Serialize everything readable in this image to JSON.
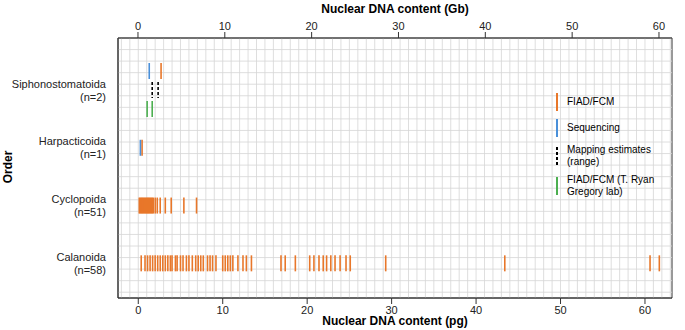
{
  "chart_data": {
    "type": "scatter",
    "x_label": "Nuclear DNA content (pg)",
    "x2_label": "Nuclear DNA content (Gb)",
    "y_label": "Order",
    "categories": [
      "Siphonostomatoida\n(n=2)",
      "Harpacticoida\n(n=1)",
      "Cyclopoida\n(n=51)",
      "Calanoida\n(n=58)"
    ],
    "xlim": [
      -2.4,
      63.2
    ],
    "xticks": [
      0,
      10,
      20,
      30,
      40,
      50,
      60
    ],
    "x2lim": [
      -2.3,
      61.5
    ],
    "x2ticks": [
      0,
      10,
      20,
      30,
      40,
      50,
      60
    ],
    "grid": true,
    "legend": "right",
    "series": [
      {
        "name": "FIAD/FCM",
        "color": "#e8772a",
        "line_style": "solid",
        "values": [
          [
            2.7
          ],
          [
            0.45
          ],
          [
            0.12,
            0.24,
            0.36,
            0.47,
            0.59,
            0.71,
            0.83,
            0.95,
            1.07,
            1.18,
            1.3,
            1.42,
            1.54,
            1.66,
            1.78,
            2.01,
            2.25,
            2.6,
            3.2,
            3.9,
            5.4,
            6.9
          ],
          [
            0.35,
            0.8,
            1.1,
            1.4,
            1.7,
            2.0,
            2.3,
            2.6,
            2.9,
            3.2,
            3.5,
            3.8,
            4.0,
            4.4,
            4.6,
            5.0,
            5.3,
            5.7,
            6.0,
            6.4,
            6.8,
            7.1,
            7.4,
            7.7,
            8.2,
            8.5,
            8.8,
            9.2,
            10.0,
            10.3,
            10.6,
            10.9,
            11.2,
            11.8,
            12.4,
            12.8,
            13.4,
            16.9,
            17.4,
            18.6,
            20.3,
            20.8,
            21.4,
            21.9,
            22.3,
            22.8,
            23.3,
            23.9,
            24.6,
            25.1,
            29.3,
            43.4,
            60.6,
            61.7
          ]
        ]
      },
      {
        "name": "Sequencing",
        "color": "#4a90d9",
        "line_style": "solid",
        "values": [
          [
            1.3
          ],
          [
            0.25
          ],
          [],
          []
        ]
      },
      {
        "name": "Mapping estimates (range)",
        "color": "#000000",
        "line_style": "dashed",
        "values": [
          [
            1.65,
            2.35
          ],
          [],
          [],
          []
        ]
      },
      {
        "name": "FIAD/FCM (T. Ryan Gregory lab)",
        "color": "#4caf50",
        "line_style": "solid",
        "values": [
          [
            1.05,
            1.65
          ],
          [],
          [],
          []
        ]
      }
    ]
  }
}
